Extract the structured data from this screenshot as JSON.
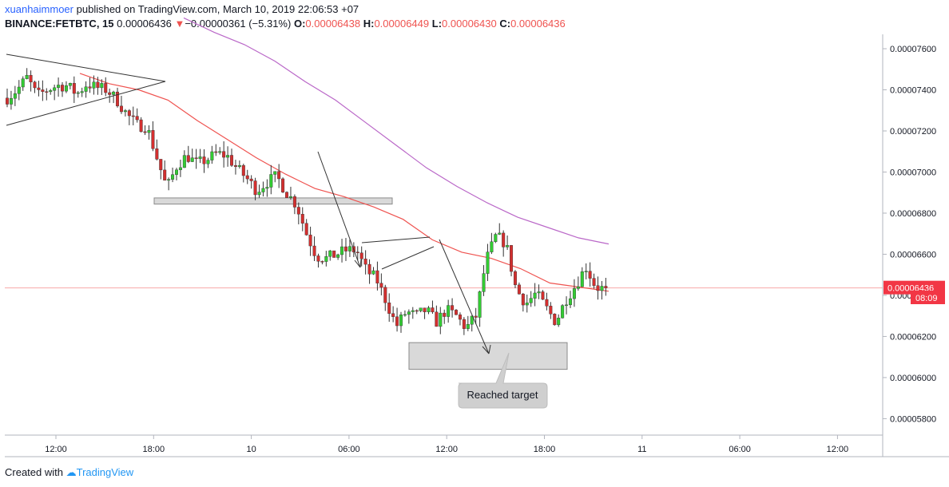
{
  "header": {
    "author": "xuanhaimmoer",
    "published_text": "published on TradingView.com, March 10, 2019 22:06:53 +07",
    "symbol": "BINANCE:FETBTC, 15",
    "last_price": "0.00006436",
    "change_arrow": "▼",
    "change": "−0.00000361 (−5.31%)",
    "o_label": "O:",
    "o_value": "0.00006438",
    "h_label": "H:",
    "h_value": "0.00006449",
    "l_label": "L:",
    "l_value": "0.00006430",
    "c_label": "C:",
    "c_value": "0.00006436"
  },
  "footer": {
    "created_with": "Created with",
    "brand": "TradingView"
  },
  "colors": {
    "up": "#33cc33",
    "down": "#d32f2f",
    "ma_fast": "#ef5350",
    "ma_slow": "#ba68c8",
    "price_line": "#f7a8a8",
    "price_tag": "#f23645",
    "zone_fill": "#d9d9d9",
    "zone_stroke": "#8a8a8a"
  },
  "chart_data": {
    "type": "candlestick",
    "y_axis": {
      "min": 5.72e-05,
      "max": 7.67e-05,
      "ticks": [
        5.8e-05,
        6e-05,
        6.2e-05,
        6.4e-05,
        6.6e-05,
        6.8e-05,
        7e-05,
        7.2e-05,
        7.4e-05,
        7.6e-05
      ],
      "tick_labels": [
        "0.00005800",
        "0.00006000",
        "0.00006200",
        "0.00006400",
        "0.00006600",
        "0.00006800",
        "0.00007000",
        "0.00007200",
        "0.00007400",
        "0.00007600"
      ]
    },
    "x_axis": {
      "tick_labels": [
        "12:00",
        "18:00",
        "10",
        "06:00",
        "12:00",
        "18:00",
        "11",
        "06:00",
        "12:00"
      ]
    },
    "current_price_label": "0.00006436",
    "countdown_label": "08:09",
    "annotation_text": "Reached target",
    "key_levels": [
      {
        "kind": "support_zone",
        "top": 6.874e-05,
        "bottom": 6.844e-05
      },
      {
        "kind": "target_zone",
        "top": 6.17e-05,
        "bottom": 6.04e-05
      }
    ],
    "waypoints": [
      [
        7.36e-05,
        7.4e-05,
        7.46e-05,
        7.37e-05,
        7.4e-05,
        7.42e-05,
        7.42e-05,
        7.38e-05,
        7.43e-05,
        7.41e-05,
        7.4e-05,
        7.35e-05,
        7.28e-05,
        7.23e-05,
        7.22e-05,
        7.07e-05,
        6.92e-05,
        7.03e-05,
        7.08e-05,
        7.04e-05,
        7.06e-05,
        7.09e-05,
        7.08e-05,
        7.02e-05,
        6.97e-05,
        6.91e-05,
        6.95e-05,
        6.98e-05,
        6.9e-05,
        6.84e-05,
        6.7e-05,
        6.59e-05,
        6.58e-05,
        6.6e-05,
        6.62e-05,
        6.62e-05,
        6.52e-05,
        6.48e-05,
        6.37e-05,
        6.25e-05,
        6.32e-05,
        6.3e-05,
        6.33e-05,
        6.27e-05,
        6.33e-05,
        6.3e-05,
        6.24e-05,
        6.3e-05,
        6.57e-05,
        6.69e-05,
        6.65e-05,
        6.43e-05,
        6.36e-05,
        6.41e-05,
        6.34e-05,
        6.27e-05,
        6.38e-05,
        6.45e-05,
        6.54e-05,
        6.44e-05,
        6.43e-05
      ]
    ],
    "ma_fast": [
      7.48e-05,
      7.43e-05,
      7.4e-05,
      7.35e-05,
      7.25e-05,
      7.16e-05,
      7.07e-05,
      6.99e-05,
      6.92e-05,
      6.88e-05,
      6.83e-05,
      6.77e-05,
      6.67e-05,
      6.61e-05,
      6.58e-05,
      6.53e-05,
      6.46e-05,
      6.44e-05,
      6.42e-05
    ],
    "ma_slow": [
      7.75e-05,
      7.68e-05,
      7.62e-05,
      7.54e-05,
      7.44e-05,
      7.35e-05,
      7.24e-05,
      7.13e-05,
      7.02e-05,
      6.93e-05,
      6.85e-05,
      6.78e-05,
      6.73e-05,
      6.68e-05,
      6.65e-05
    ]
  }
}
